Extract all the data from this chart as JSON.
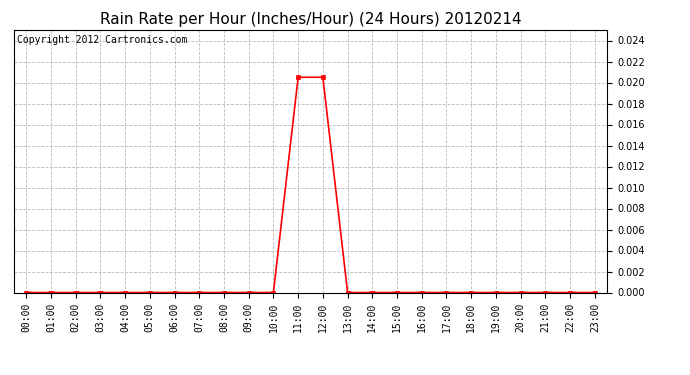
{
  "title": "Rain Rate per Hour (Inches/Hour) (24 Hours) 20120214",
  "copyright": "Copyright 2012 Cartronics.com",
  "line_color": "#ff0000",
  "bg_color": "#ffffff",
  "plot_bg_color": "#ffffff",
  "grid_color": "#bbbbbb",
  "ylim": [
    0.0,
    0.025
  ],
  "yticks": [
    0.0,
    0.002,
    0.004,
    0.006,
    0.008,
    0.01,
    0.012,
    0.014,
    0.016,
    0.018,
    0.02,
    0.022,
    0.024
  ],
  "hours": [
    0,
    1,
    2,
    3,
    4,
    5,
    6,
    7,
    8,
    9,
    10,
    11,
    12,
    13,
    14,
    15,
    16,
    17,
    18,
    19,
    20,
    21,
    22,
    23
  ],
  "values": [
    0,
    0,
    0,
    0,
    0,
    0,
    0,
    0,
    0,
    0,
    0,
    0.0205,
    0.0205,
    0,
    0,
    0,
    0,
    0,
    0,
    0,
    0,
    0,
    0,
    0
  ],
  "marker": "s",
  "marker_size": 2.5,
  "line_width": 1.2,
  "title_fontsize": 11,
  "tick_fontsize": 7,
  "copyright_fontsize": 7
}
